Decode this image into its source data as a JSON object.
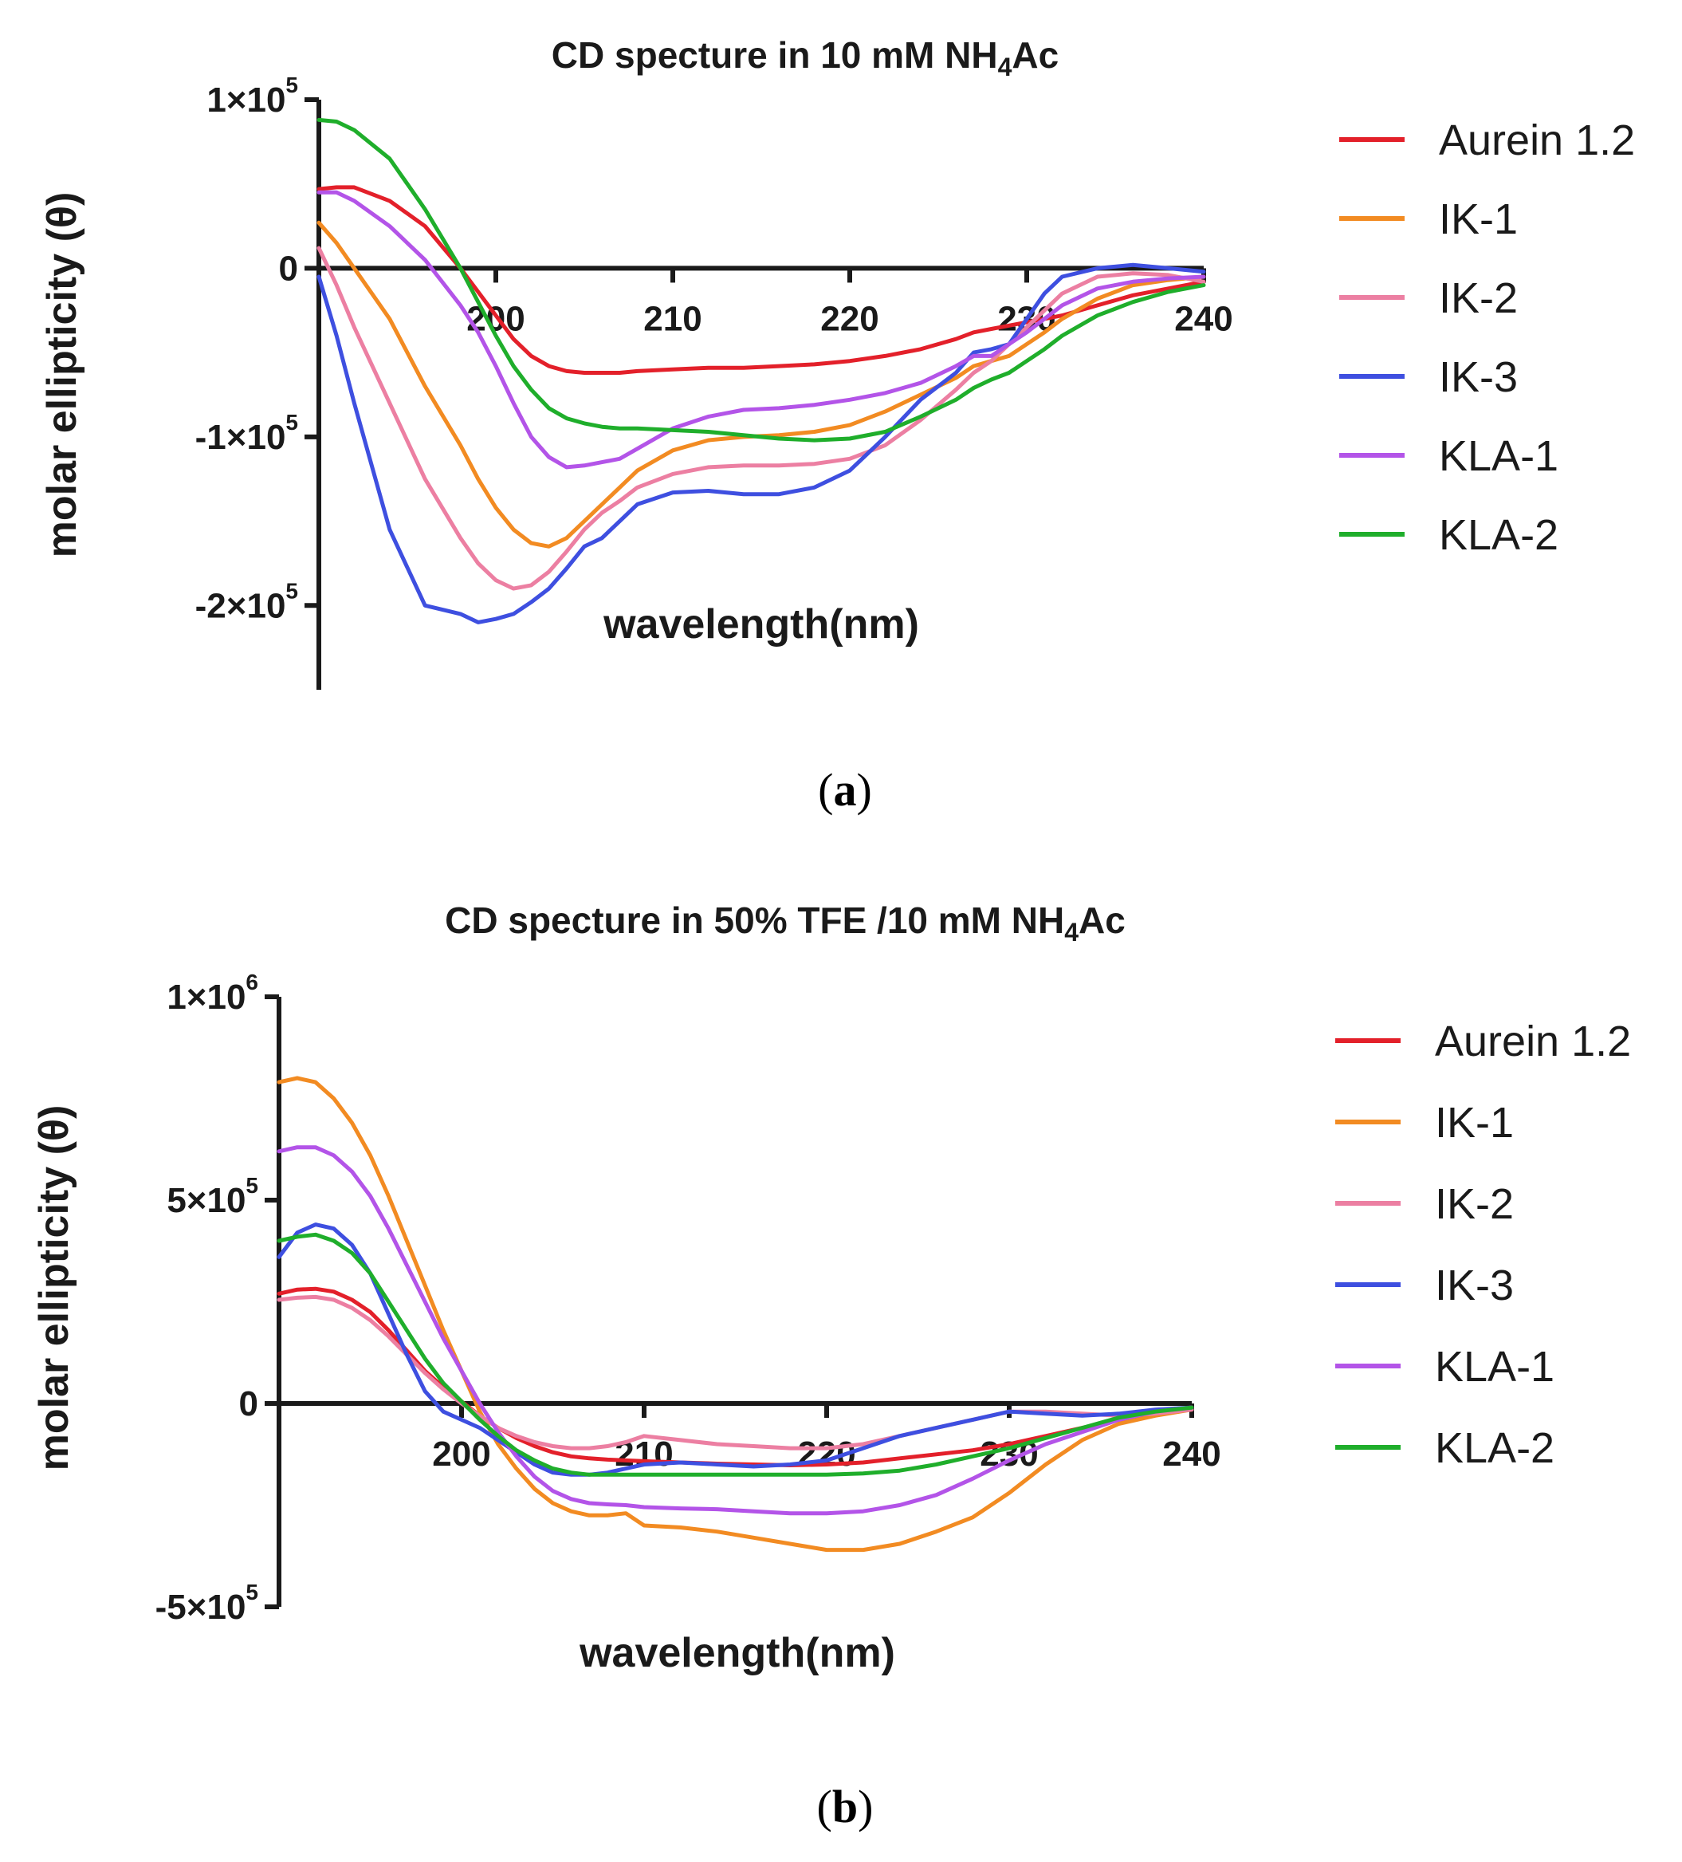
{
  "colors": {
    "Aurein 1.2": "#e3202a",
    "IK-1": "#f28b22",
    "IK-2": "#ec7fa2",
    "IK-3": "#3e4fe0",
    "KLA-1": "#b354e8",
    "KLA-2": "#1fae2b"
  },
  "chart_data": [
    {
      "type": "line",
      "panel_label": "a",
      "title": "CD specture in 10 mM NH",
      "title_subscript": "4",
      "title_suffix": "Ac",
      "xlabel": "wavelength(nm)",
      "ylabel": "molar ellipticity (θ)",
      "xlim": [
        190,
        240
      ],
      "ylim": [
        -250000,
        100000
      ],
      "xticks": [
        {
          "value": 200,
          "label": "200"
        },
        {
          "value": 210,
          "label": "210"
        },
        {
          "value": 220,
          "label": "220"
        },
        {
          "value": 230,
          "label": "230"
        },
        {
          "value": 240,
          "label": "240"
        }
      ],
      "yticks": [
        {
          "value": 100000,
          "mantissa": "1×10",
          "exp": "5"
        },
        {
          "value": 0,
          "mantissa": "0",
          "exp": ""
        },
        {
          "value": -100000,
          "mantissa": "-1×10",
          "exp": "5"
        },
        {
          "value": -200000,
          "mantissa": "-2×10",
          "exp": "5"
        }
      ],
      "legend_position": "right",
      "x": [
        190,
        191,
        192,
        194,
        196,
        198,
        199,
        200,
        201,
        202,
        203,
        204,
        205,
        206,
        207,
        208,
        210,
        212,
        214,
        216,
        218,
        220,
        222,
        224,
        226,
        227,
        228,
        229,
        230,
        231,
        232,
        234,
        236,
        238,
        240
      ],
      "series": [
        {
          "name": "Aurein 1.2",
          "values": [
            47000,
            48000,
            48000,
            40000,
            25000,
            0,
            -14000,
            -28000,
            -42000,
            -52000,
            -58000,
            -61000,
            -62000,
            -62000,
            -62000,
            -61000,
            -60000,
            -59000,
            -59000,
            -58000,
            -57000,
            -55000,
            -52000,
            -48000,
            -42000,
            -38000,
            -36000,
            -34000,
            -32000,
            -30000,
            -28000,
            -22000,
            -16000,
            -12000,
            -8000
          ]
        },
        {
          "name": "IK-1",
          "values": [
            27000,
            15000,
            0,
            -30000,
            -70000,
            -105000,
            -125000,
            -142000,
            -155000,
            -163000,
            -165000,
            -160000,
            -150000,
            -140000,
            -130000,
            -120000,
            -108000,
            -102000,
            -100000,
            -99000,
            -97000,
            -93000,
            -85000,
            -75000,
            -65000,
            -58000,
            -55000,
            -52000,
            -45000,
            -38000,
            -30000,
            -18000,
            -10000,
            -7000,
            -5000
          ]
        },
        {
          "name": "IK-2",
          "values": [
            12000,
            -10000,
            -35000,
            -80000,
            -125000,
            -160000,
            -175000,
            -185000,
            -190000,
            -188000,
            -180000,
            -168000,
            -155000,
            -145000,
            -138000,
            -130000,
            -122000,
            -118000,
            -117000,
            -117000,
            -116000,
            -113000,
            -105000,
            -90000,
            -72000,
            -62000,
            -55000,
            -45000,
            -35000,
            -25000,
            -15000,
            -5000,
            -3000,
            -4000,
            -8000
          ]
        },
        {
          "name": "IK-3",
          "values": [
            -5000,
            -40000,
            -80000,
            -155000,
            -200000,
            -205000,
            -210000,
            -208000,
            -205000,
            -198000,
            -190000,
            -178000,
            -165000,
            -160000,
            -150000,
            -140000,
            -133000,
            -132000,
            -134000,
            -134000,
            -130000,
            -120000,
            -100000,
            -78000,
            -62000,
            -50000,
            -48000,
            -45000,
            -30000,
            -15000,
            -5000,
            0,
            2000,
            0,
            -2000
          ]
        },
        {
          "name": "KLA-1",
          "values": [
            45000,
            45000,
            40000,
            25000,
            5000,
            -22000,
            -38000,
            -58000,
            -80000,
            -100000,
            -112000,
            -118000,
            -117000,
            -115000,
            -113000,
            -107000,
            -95000,
            -88000,
            -84000,
            -83000,
            -81000,
            -78000,
            -74000,
            -68000,
            -58000,
            -52000,
            -52000,
            -45000,
            -38000,
            -30000,
            -22000,
            -12000,
            -8000,
            -6000,
            -5000
          ]
        },
        {
          "name": "KLA-2",
          "values": [
            88000,
            87000,
            82000,
            65000,
            35000,
            0,
            -20000,
            -40000,
            -58000,
            -72000,
            -83000,
            -89000,
            -92000,
            -94000,
            -95000,
            -95000,
            -96000,
            -97000,
            -99000,
            -101000,
            -102000,
            -101000,
            -97000,
            -88000,
            -78000,
            -71000,
            -66000,
            -62000,
            -55000,
            -48000,
            -40000,
            -28000,
            -20000,
            -14000,
            -10000
          ]
        }
      ]
    },
    {
      "type": "line",
      "panel_label": "b",
      "title": "CD specture in 50% TFE /10 mM NH",
      "title_subscript": "4",
      "title_suffix": "Ac",
      "xlabel": "wavelength(nm)",
      "ylabel": "molar ellipticity (θ)",
      "xlim": [
        190,
        240
      ],
      "ylim": [
        -500000,
        1000000
      ],
      "xticks": [
        {
          "value": 200,
          "label": "200"
        },
        {
          "value": 210,
          "label": "210"
        },
        {
          "value": 220,
          "label": "220"
        },
        {
          "value": 230,
          "label": "230"
        },
        {
          "value": 240,
          "label": "240"
        }
      ],
      "yticks": [
        {
          "value": 1000000,
          "mantissa": "1×10",
          "exp": "6"
        },
        {
          "value": 500000,
          "mantissa": "5×10",
          "exp": "5"
        },
        {
          "value": 0,
          "mantissa": "0",
          "exp": ""
        },
        {
          "value": -500000,
          "mantissa": "-5×10",
          "exp": "5"
        }
      ],
      "legend_position": "right",
      "x": [
        190,
        191,
        192,
        193,
        194,
        195,
        196,
        197,
        198,
        199,
        200,
        201,
        202,
        203,
        204,
        205,
        206,
        207,
        208,
        209,
        210,
        212,
        214,
        216,
        218,
        220,
        222,
        224,
        226,
        228,
        230,
        232,
        234,
        236,
        238,
        240
      ],
      "series": [
        {
          "name": "Aurein 1.2",
          "values": [
            270000,
            280000,
            282000,
            275000,
            255000,
            225000,
            180000,
            130000,
            80000,
            40000,
            5000,
            -30000,
            -60000,
            -85000,
            -105000,
            -120000,
            -130000,
            -135000,
            -138000,
            -140000,
            -142000,
            -145000,
            -148000,
            -150000,
            -152000,
            -150000,
            -145000,
            -135000,
            -125000,
            -115000,
            -100000,
            -80000,
            -60000,
            -40000,
            -25000,
            -10000
          ]
        },
        {
          "name": "IK-1",
          "values": [
            790000,
            800000,
            790000,
            750000,
            690000,
            610000,
            510000,
            400000,
            290000,
            180000,
            80000,
            -20000,
            -100000,
            -160000,
            -210000,
            -245000,
            -265000,
            -275000,
            -275000,
            -270000,
            -300000,
            -305000,
            -315000,
            -330000,
            -345000,
            -360000,
            -360000,
            -345000,
            -315000,
            -280000,
            -220000,
            -150000,
            -90000,
            -50000,
            -30000,
            -15000
          ]
        },
        {
          "name": "IK-2",
          "values": [
            255000,
            260000,
            262000,
            255000,
            235000,
            205000,
            165000,
            120000,
            75000,
            35000,
            0,
            -30000,
            -60000,
            -80000,
            -95000,
            -105000,
            -110000,
            -110000,
            -105000,
            -95000,
            -80000,
            -90000,
            -100000,
            -105000,
            -110000,
            -110000,
            -100000,
            -80000,
            -60000,
            -40000,
            -20000,
            -20000,
            -25000,
            -30000,
            -25000,
            -15000
          ]
        },
        {
          "name": "IK-3",
          "values": [
            360000,
            420000,
            440000,
            430000,
            390000,
            320000,
            220000,
            120000,
            30000,
            -20000,
            -40000,
            -60000,
            -90000,
            -120000,
            -150000,
            -170000,
            -175000,
            -175000,
            -170000,
            -160000,
            -150000,
            -145000,
            -150000,
            -155000,
            -150000,
            -140000,
            -110000,
            -80000,
            -60000,
            -40000,
            -20000,
            -25000,
            -30000,
            -25000,
            -15000,
            -10000
          ]
        },
        {
          "name": "KLA-1",
          "values": [
            620000,
            630000,
            630000,
            610000,
            570000,
            510000,
            430000,
            340000,
            250000,
            160000,
            80000,
            0,
            -70000,
            -130000,
            -180000,
            -215000,
            -235000,
            -245000,
            -248000,
            -250000,
            -255000,
            -258000,
            -260000,
            -265000,
            -270000,
            -270000,
            -265000,
            -250000,
            -225000,
            -185000,
            -140000,
            -100000,
            -70000,
            -40000,
            -20000,
            -10000
          ]
        },
        {
          "name": "KLA-2",
          "values": [
            400000,
            410000,
            415000,
            400000,
            370000,
            320000,
            250000,
            180000,
            110000,
            50000,
            5000,
            -40000,
            -80000,
            -115000,
            -140000,
            -160000,
            -170000,
            -175000,
            -175000,
            -175000,
            -175000,
            -175000,
            -175000,
            -175000,
            -175000,
            -175000,
            -172000,
            -165000,
            -150000,
            -130000,
            -110000,
            -85000,
            -60000,
            -35000,
            -20000,
            -10000
          ]
        }
      ]
    }
  ]
}
